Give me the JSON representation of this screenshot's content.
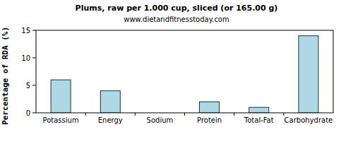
{
  "chart_data": {
    "type": "bar",
    "title": "Plums, raw per 1.000 cup, sliced (or 165.00 g)",
    "subtitle": "www.dietandfitnesstoday.com",
    "y_label": "Percentage of RDA (%)",
    "categories": [
      "Potassium",
      "Energy",
      "Sodium",
      "Protein",
      "Total-Fat",
      "Carbohydrate"
    ],
    "values": [
      6,
      4,
      0,
      2,
      1,
      14
    ],
    "color": "#add8e6",
    "ylim": [
      0,
      15
    ],
    "yticks": [
      0,
      5,
      10,
      15
    ],
    "grid": false
  }
}
